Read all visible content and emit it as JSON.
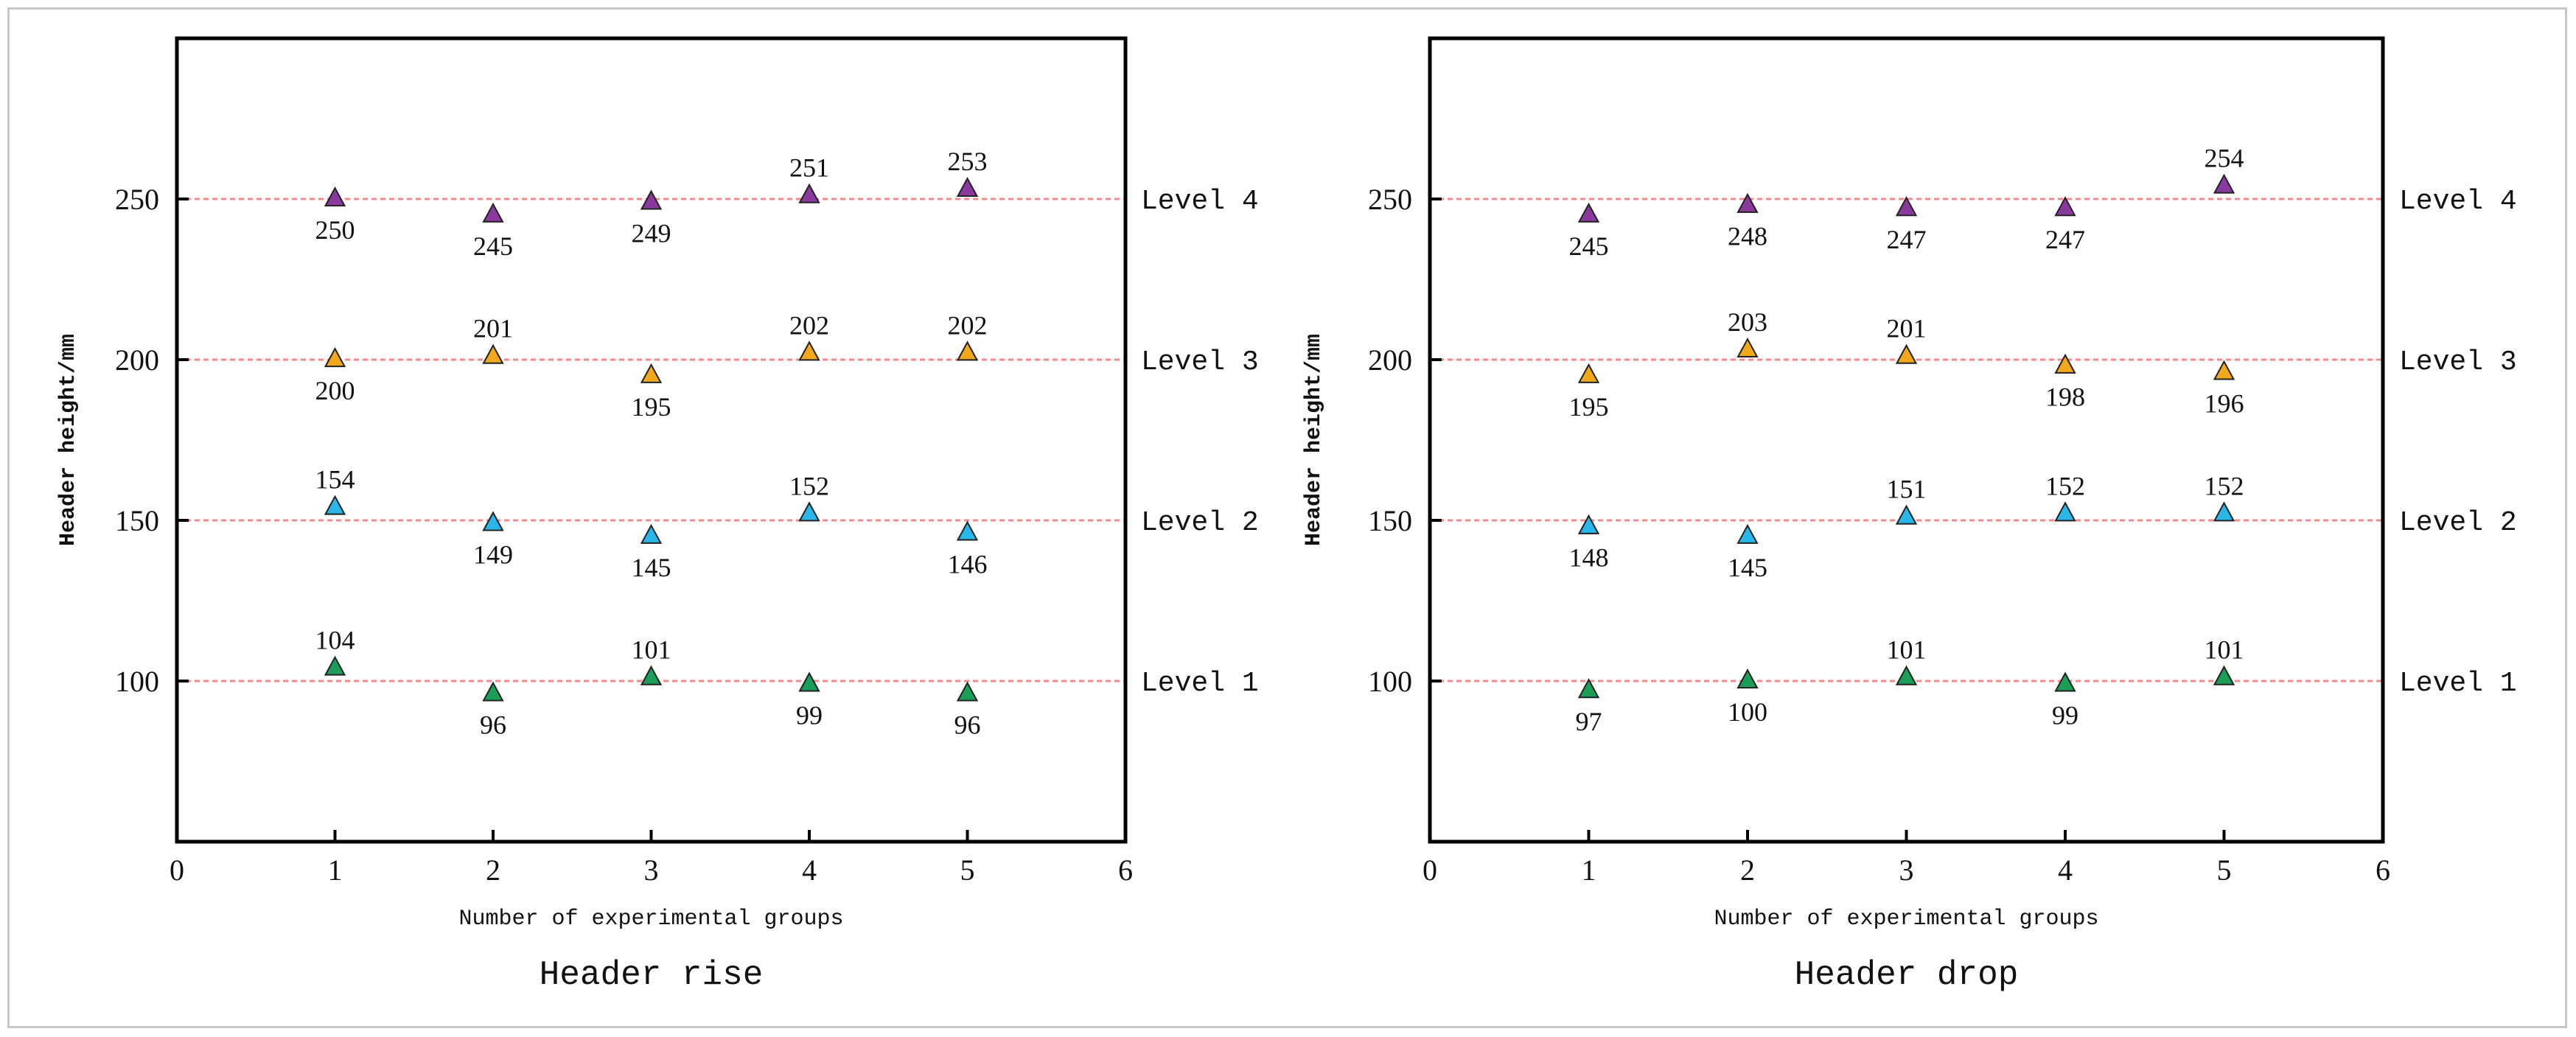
{
  "chart_data": [
    {
      "type": "scatter",
      "title": "Header rise",
      "xlabel": "Number of experimental groups",
      "ylabel": "Header height/mm",
      "xlim": [
        0,
        6
      ],
      "ylim": [
        50,
        300
      ],
      "x_ticks": [
        0,
        1,
        2,
        3,
        4,
        5,
        6
      ],
      "y_ticks": [
        100,
        150,
        200,
        250
      ],
      "reference_lines": [
        {
          "y": 100,
          "label": "Level 1"
        },
        {
          "y": 150,
          "label": "Level 2"
        },
        {
          "y": 200,
          "label": "Level 3"
        },
        {
          "y": 250,
          "label": "Level 4"
        }
      ],
      "series": [
        {
          "color": "#1a9e58",
          "x": [
            1,
            2,
            3,
            4,
            5
          ],
          "values": [
            104,
            96,
            101,
            99,
            96
          ],
          "label_pos": [
            "above",
            "below",
            "above",
            "below",
            "below"
          ]
        },
        {
          "color": "#29b6e8",
          "x": [
            1,
            2,
            3,
            4,
            5
          ],
          "values": [
            154,
            149,
            145,
            152,
            146
          ],
          "label_pos": [
            "above",
            "below",
            "below",
            "above",
            "below"
          ]
        },
        {
          "color": "#f2a81d",
          "x": [
            1,
            2,
            3,
            4,
            5
          ],
          "values": [
            200,
            201,
            195,
            202,
            202
          ],
          "label_pos": [
            "below",
            "above",
            "below",
            "above",
            "above"
          ]
        },
        {
          "color": "#8a3a9e",
          "x": [
            1,
            2,
            3,
            4,
            5
          ],
          "values": [
            250,
            245,
            249,
            251,
            253
          ],
          "label_pos": [
            "below",
            "below",
            "below",
            "above",
            "above"
          ]
        }
      ]
    },
    {
      "type": "scatter",
      "title": "Header drop",
      "xlabel": "Number of experimental groups",
      "ylabel": "Header height/mm",
      "xlim": [
        0,
        6
      ],
      "ylim": [
        50,
        300
      ],
      "x_ticks": [
        0,
        1,
        2,
        3,
        4,
        5,
        6
      ],
      "y_ticks": [
        100,
        150,
        200,
        250
      ],
      "reference_lines": [
        {
          "y": 100,
          "label": "Level 1"
        },
        {
          "y": 150,
          "label": "Level 2"
        },
        {
          "y": 200,
          "label": "Level 3"
        },
        {
          "y": 250,
          "label": "Level 4"
        }
      ],
      "series": [
        {
          "color": "#1a9e58",
          "x": [
            1,
            2,
            3,
            4,
            5
          ],
          "values": [
            97,
            100,
            101,
            99,
            101
          ],
          "label_pos": [
            "below",
            "below",
            "above",
            "below",
            "above"
          ]
        },
        {
          "color": "#29b6e8",
          "x": [
            1,
            2,
            3,
            4,
            5
          ],
          "values": [
            148,
            145,
            151,
            152,
            152
          ],
          "label_pos": [
            "below",
            "below",
            "above",
            "above",
            "above"
          ]
        },
        {
          "color": "#f2a81d",
          "x": [
            1,
            2,
            3,
            4,
            5
          ],
          "values": [
            195,
            203,
            201,
            198,
            196
          ],
          "label_pos": [
            "below",
            "above",
            "above",
            "below",
            "below"
          ]
        },
        {
          "color": "#8a3a9e",
          "x": [
            1,
            2,
            3,
            4,
            5
          ],
          "values": [
            245,
            248,
            247,
            247,
            254
          ],
          "label_pos": [
            "below",
            "below",
            "below",
            "below",
            "above"
          ]
        }
      ]
    }
  ]
}
